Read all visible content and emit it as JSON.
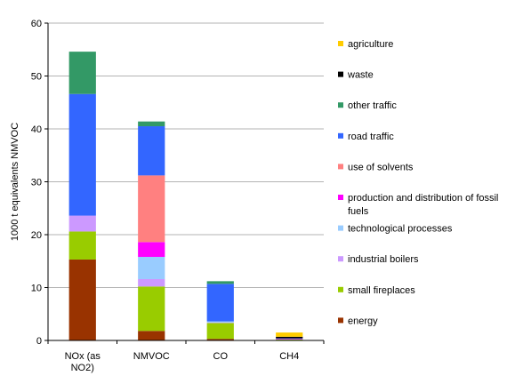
{
  "chart_data": {
    "type": "bar",
    "stacked": true,
    "title": "",
    "xlabel": "",
    "ylabel": "1000 t equivalents NMVOC",
    "ylim": [
      0,
      60
    ],
    "yticks": [
      "0",
      "10",
      "20",
      "30",
      "40",
      "50",
      "60"
    ],
    "grid": true,
    "legend_position": "right",
    "categories": [
      "NOx (as NO2)",
      "NMVOC",
      "CO",
      "CH4"
    ],
    "category_lines": [
      [
        "NOx (as",
        "NO2)"
      ],
      [
        "NMVOC"
      ],
      [
        "CO"
      ],
      [
        "CH4"
      ]
    ],
    "series": [
      {
        "name": "energy",
        "color": "#993300",
        "values": [
          15.3,
          1.8,
          0.3,
          0.1
        ]
      },
      {
        "name": "small fireplaces",
        "color": "#99CC00",
        "values": [
          5.3,
          8.4,
          3.0,
          0.1
        ]
      },
      {
        "name": "industrial boilers",
        "color": "#CC99FF",
        "values": [
          3.0,
          1.4,
          0.1,
          0.0
        ]
      },
      {
        "name": "technological processes",
        "color": "#99CCFF",
        "values": [
          0.0,
          4.2,
          0.2,
          0.0
        ]
      },
      {
        "name": "production and distribution of fossil fuels",
        "color": "#FF00FF",
        "values": [
          0.0,
          2.8,
          0.0,
          0.1
        ]
      },
      {
        "name": "use of solvents",
        "color": "#FF8080",
        "values": [
          0.0,
          12.6,
          0.0,
          0.0
        ]
      },
      {
        "name": "road traffic",
        "color": "#3366FF",
        "values": [
          23.0,
          9.3,
          7.1,
          0.1
        ]
      },
      {
        "name": "other traffic",
        "color": "#339966",
        "values": [
          8.0,
          0.9,
          0.5,
          0.0
        ]
      },
      {
        "name": "waste",
        "color": "#000000",
        "values": [
          0.0,
          0.0,
          0.0,
          0.3
        ]
      },
      {
        "name": "agriculture",
        "color": "#FFCC00",
        "values": [
          0.0,
          0.0,
          0.0,
          0.8
        ]
      }
    ],
    "legend_order": [
      "agriculture",
      "waste",
      "other traffic",
      "road traffic",
      "use of solvents",
      "production and distribution of fossil fuels",
      "technological processes",
      "industrial boilers",
      "small fireplaces",
      "energy"
    ],
    "legend_lines": {
      "production and distribution of fossil fuels": [
        "production and distribution of fossil",
        "fuels"
      ]
    }
  }
}
